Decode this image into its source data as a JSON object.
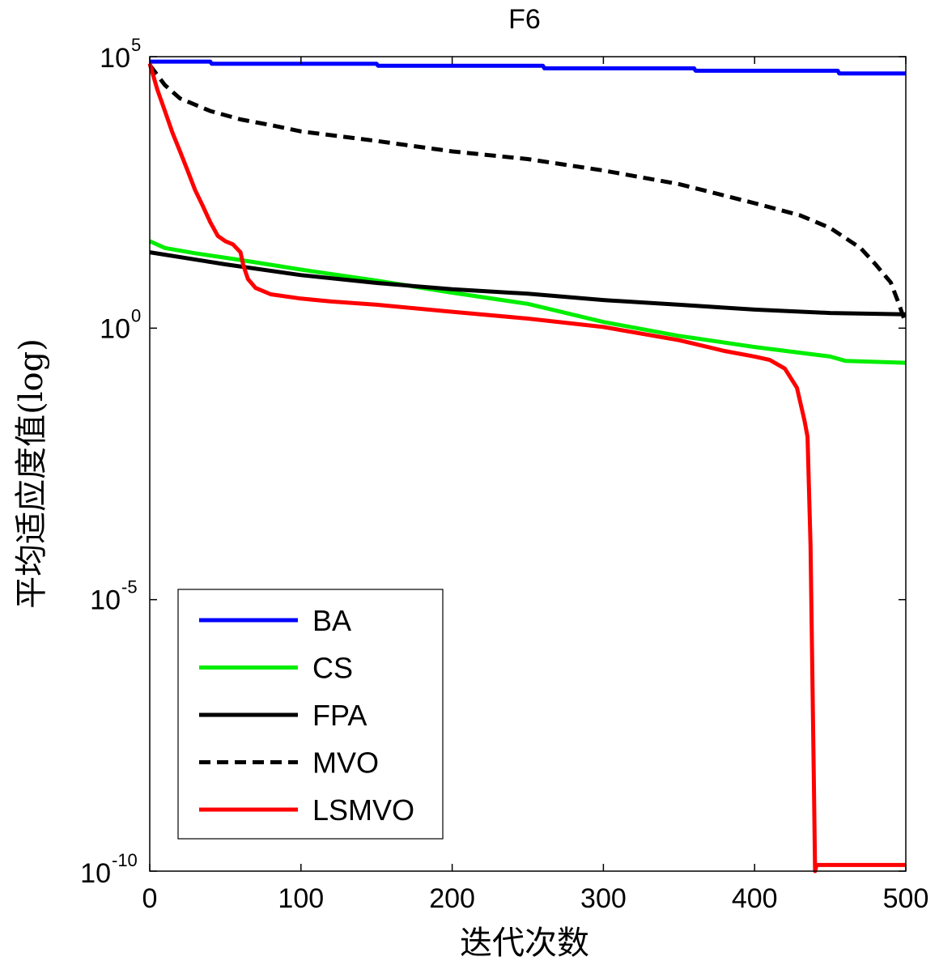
{
  "chart_data": {
    "type": "line",
    "title": "F6",
    "xlabel": "迭代次数",
    "ylabel": "平均适应度值(log)",
    "xlim": [
      0,
      500
    ],
    "ylim": [
      1e-10,
      100000.0
    ],
    "yscale": "log",
    "xticks": [
      0,
      100,
      200,
      300,
      400,
      500
    ],
    "xtick_labels": [
      "0",
      "100",
      "200",
      "300",
      "400",
      "500"
    ],
    "yticks": [
      {
        "value": 100000.0,
        "base": "10",
        "exp": "5"
      },
      {
        "value": 1,
        "base": "10",
        "exp": "0"
      },
      {
        "value": 1e-05,
        "base": "10",
        "exp": "-5"
      },
      {
        "value": 1e-10,
        "base": "10",
        "exp": "-10"
      }
    ],
    "grid": false,
    "legend_position": "bottom-left",
    "series": [
      {
        "name": "BA",
        "color": "#0000ff",
        "dash": "solid",
        "points": [
          [
            0,
            81000
          ],
          [
            40,
            81000
          ],
          [
            41,
            74000
          ],
          [
            150,
            74000
          ],
          [
            151,
            68000
          ],
          [
            260,
            68000
          ],
          [
            261,
            61000
          ],
          [
            360,
            61000
          ],
          [
            361,
            55000
          ],
          [
            455,
            55000
          ],
          [
            456,
            49000
          ],
          [
            500,
            49000
          ]
        ]
      },
      {
        "name": "CS",
        "color": "#00ee00",
        "dash": "solid",
        "points": [
          [
            0,
            40
          ],
          [
            10,
            30
          ],
          [
            30,
            24
          ],
          [
            60,
            18
          ],
          [
            100,
            12
          ],
          [
            150,
            7.5
          ],
          [
            200,
            4.5
          ],
          [
            250,
            2.8
          ],
          [
            300,
            1.3
          ],
          [
            350,
            0.72
          ],
          [
            400,
            0.45
          ],
          [
            450,
            0.3
          ],
          [
            460,
            0.25
          ],
          [
            500,
            0.23
          ]
        ]
      },
      {
        "name": "FPA",
        "color": "#000000",
        "dash": "solid",
        "points": [
          [
            0,
            25
          ],
          [
            50,
            15
          ],
          [
            100,
            9.5
          ],
          [
            150,
            6.8
          ],
          [
            200,
            5.2
          ],
          [
            250,
            4.3
          ],
          [
            300,
            3.3
          ],
          [
            350,
            2.7
          ],
          [
            400,
            2.2
          ],
          [
            450,
            1.9
          ],
          [
            500,
            1.8
          ]
        ]
      },
      {
        "name": "MVO",
        "color": "#000000",
        "dash": "dashed",
        "points": [
          [
            0,
            70000
          ],
          [
            10,
            30000
          ],
          [
            20,
            17000
          ],
          [
            40,
            10000
          ],
          [
            60,
            7000
          ],
          [
            80,
            5500
          ],
          [
            100,
            4200
          ],
          [
            150,
            2800
          ],
          [
            200,
            1800
          ],
          [
            250,
            1300
          ],
          [
            300,
            800
          ],
          [
            350,
            450
          ],
          [
            400,
            200
          ],
          [
            430,
            120
          ],
          [
            450,
            70
          ],
          [
            470,
            30
          ],
          [
            480,
            15
          ],
          [
            490,
            7
          ],
          [
            495,
            3
          ],
          [
            500,
            1.2
          ]
        ]
      },
      {
        "name": "LSMVO",
        "color": "#ff0000",
        "dash": "solid",
        "points": [
          [
            0,
            75000
          ],
          [
            5,
            25000
          ],
          [
            10,
            10000
          ],
          [
            15,
            4000
          ],
          [
            20,
            1800
          ],
          [
            25,
            800
          ],
          [
            30,
            350
          ],
          [
            35,
            180
          ],
          [
            40,
            90
          ],
          [
            45,
            50
          ],
          [
            50,
            40
          ],
          [
            55,
            35
          ],
          [
            60,
            25
          ],
          [
            62,
            14
          ],
          [
            65,
            8
          ],
          [
            70,
            5.5
          ],
          [
            80,
            4.2
          ],
          [
            100,
            3.5
          ],
          [
            120,
            3.1
          ],
          [
            150,
            2.7
          ],
          [
            200,
            2
          ],
          [
            250,
            1.5
          ],
          [
            300,
            1.05
          ],
          [
            350,
            0.6
          ],
          [
            380,
            0.38
          ],
          [
            400,
            0.3
          ],
          [
            410,
            0.26
          ],
          [
            420,
            0.18
          ],
          [
            428,
            0.08
          ],
          [
            433,
            0.02
          ],
          [
            435,
            0.01
          ],
          [
            437,
            0.0001
          ],
          [
            438,
            1e-06
          ],
          [
            439,
            1e-08
          ],
          [
            440,
            1e-10
          ],
          [
            441,
            1.3e-10
          ],
          [
            500,
            1.3e-10
          ]
        ]
      }
    ]
  }
}
